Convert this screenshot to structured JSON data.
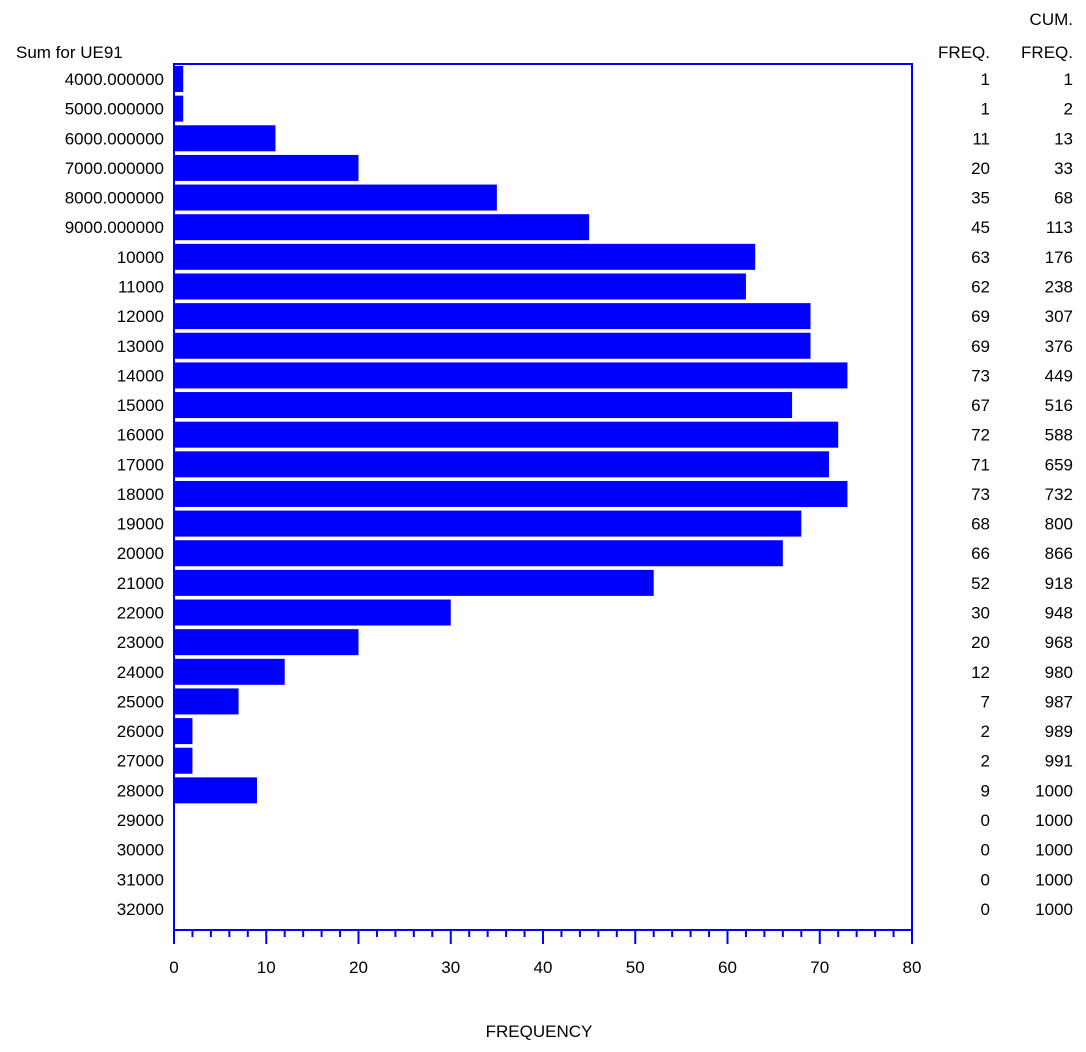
{
  "chart_data": {
    "type": "bar",
    "orientation": "horizontal",
    "category_axis_label": "Sum for UE91",
    "xlabel": "FREQUENCY",
    "xlim": [
      0,
      80
    ],
    "x_ticks": [
      0,
      10,
      20,
      30,
      40,
      50,
      60,
      70,
      80
    ],
    "freq_header": "FREQ.",
    "cum_header_top": "CUM.",
    "cum_header_bottom": "FREQ.",
    "bar_color": "#0000ff",
    "grid": false,
    "categories": [
      "4000.000000",
      "5000.000000",
      "6000.000000",
      "7000.000000",
      "8000.000000",
      "9000.000000",
      "10000",
      "11000",
      "12000",
      "13000",
      "14000",
      "15000",
      "16000",
      "17000",
      "18000",
      "19000",
      "20000",
      "21000",
      "22000",
      "23000",
      "24000",
      "25000",
      "26000",
      "27000",
      "28000",
      "29000",
      "30000",
      "31000",
      "32000"
    ],
    "values": [
      1,
      1,
      11,
      20,
      35,
      45,
      63,
      62,
      69,
      69,
      73,
      67,
      72,
      71,
      73,
      68,
      66,
      52,
      30,
      20,
      12,
      7,
      2,
      2,
      9,
      0,
      0,
      0,
      0
    ],
    "cumulative": [
      1,
      2,
      13,
      33,
      68,
      113,
      176,
      238,
      307,
      376,
      449,
      516,
      588,
      659,
      732,
      800,
      866,
      918,
      948,
      968,
      980,
      987,
      989,
      991,
      1000,
      1000,
      1000,
      1000,
      1000
    ]
  }
}
